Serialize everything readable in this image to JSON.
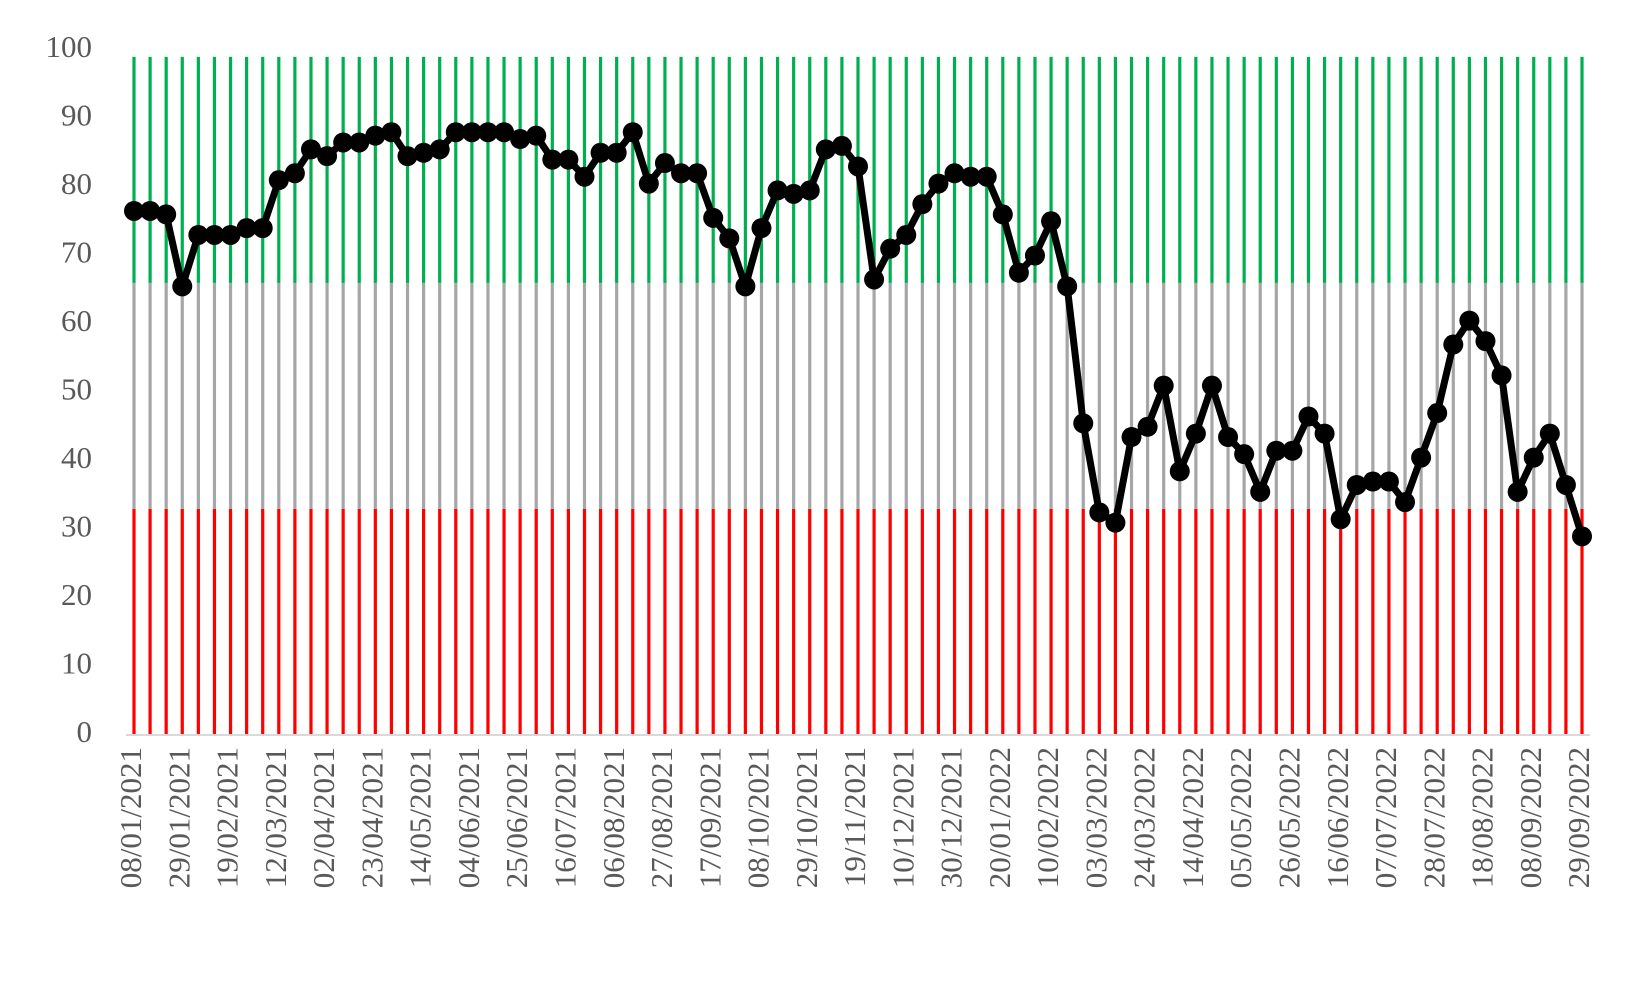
{
  "chart_data": {
    "type": "line",
    "categories": [
      "08/01/2021",
      null,
      null,
      "29/01/2021",
      null,
      null,
      "19/02/2021",
      null,
      null,
      "12/03/2021",
      null,
      null,
      "02/04/2021",
      null,
      null,
      "23/04/2021",
      null,
      null,
      "14/05/2021",
      null,
      null,
      "04/06/2021",
      null,
      null,
      "25/06/2021",
      null,
      null,
      "16/07/2021",
      null,
      null,
      "06/08/2021",
      null,
      null,
      "27/08/2021",
      null,
      null,
      "17/09/2021",
      null,
      null,
      "08/10/2021",
      null,
      null,
      "29/10/2021",
      null,
      null,
      "19/11/2021",
      null,
      null,
      "10/12/2021",
      null,
      null,
      "30/12/2021",
      null,
      null,
      "20/01/2022",
      null,
      null,
      "10/02/2022",
      null,
      null,
      "03/03/2022",
      null,
      null,
      "24/03/2022",
      null,
      null,
      "14/04/2022",
      null,
      null,
      "05/05/2022",
      null,
      null,
      "26/05/2022",
      null,
      null,
      "16/06/2022",
      null,
      null,
      "07/07/2022",
      null,
      null,
      "28/07/2022",
      null,
      null,
      "18/08/2022",
      null,
      null,
      "08/09/2022",
      null,
      null,
      "29/09/2022"
    ],
    "bands": [
      {
        "color": "#ff0000",
        "values": [
          33,
          33,
          33,
          33,
          33,
          33,
          33,
          33,
          33,
          33,
          33,
          33,
          33,
          33,
          33,
          33,
          33,
          33,
          33,
          33,
          33,
          33,
          33,
          33,
          33,
          33,
          33,
          33,
          33,
          33,
          33,
          33,
          33,
          33,
          33,
          33,
          33,
          33,
          33,
          33,
          33,
          33,
          33,
          33,
          33,
          33,
          33,
          33,
          33,
          33,
          33,
          33,
          33,
          33,
          33,
          33,
          33,
          33,
          33,
          33,
          33,
          33,
          33,
          33,
          33,
          33,
          33,
          33,
          33,
          33,
          33,
          33,
          33,
          33,
          33,
          33,
          33,
          33,
          33,
          33,
          33,
          33,
          33,
          33,
          33,
          33,
          33,
          33,
          33,
          33,
          33
        ]
      },
      {
        "color": "#a6a6a6",
        "values": [
          33,
          33,
          33,
          33,
          33,
          33,
          33,
          33,
          33,
          33,
          33,
          33,
          33,
          33,
          33,
          33,
          33,
          33,
          33,
          33,
          33,
          33,
          33,
          33,
          33,
          33,
          33,
          33,
          33,
          33,
          33,
          33,
          33,
          33,
          33,
          33,
          33,
          33,
          33,
          33,
          33,
          33,
          33,
          33,
          33,
          33,
          33,
          33,
          33,
          33,
          33,
          33,
          33,
          33,
          33,
          33,
          33,
          33,
          33,
          33,
          33,
          33,
          33,
          33,
          33,
          33,
          33,
          33,
          33,
          33,
          33,
          33,
          33,
          33,
          33,
          33,
          33,
          33,
          33,
          33,
          33,
          33,
          33,
          33,
          33,
          33,
          33,
          33,
          33,
          33,
          33
        ]
      },
      {
        "color": "#00b050",
        "values": [
          33,
          33,
          33,
          33,
          33,
          33,
          33,
          33,
          33,
          33,
          33,
          33,
          33,
          33,
          33,
          33,
          33,
          33,
          33,
          33,
          33,
          33,
          33,
          33,
          33,
          33,
          33,
          33,
          33,
          33,
          33,
          33,
          33,
          33,
          33,
          33,
          33,
          33,
          33,
          33,
          33,
          33,
          33,
          33,
          33,
          33,
          33,
          33,
          33,
          33,
          33,
          33,
          33,
          33,
          33,
          33,
          33,
          33,
          33,
          33,
          33,
          33,
          33,
          33,
          33,
          33,
          33,
          33,
          33,
          33,
          33,
          33,
          33,
          33,
          33,
          33,
          33,
          33,
          33,
          33,
          33,
          33,
          33,
          33,
          33,
          33,
          33,
          33,
          33,
          33,
          33
        ]
      }
    ],
    "series": [
      {
        "color": "#000000",
        "values": [
          76.5,
          76.5,
          76,
          65.5,
          73,
          73,
          73,
          74,
          74,
          81,
          82,
          85.5,
          84.5,
          86.5,
          86.5,
          87.5,
          88,
          84.5,
          85,
          85.5,
          88,
          88,
          88,
          88,
          87,
          87.5,
          84,
          84,
          81.5,
          85,
          85,
          88,
          80.5,
          83.5,
          82,
          82,
          75.5,
          72.5,
          65.5,
          74,
          79.5,
          79,
          79.5,
          85.5,
          86,
          83,
          66.5,
          71,
          73,
          77.5,
          80.5,
          82,
          81.5,
          81.5,
          76,
          67.5,
          70,
          75,
          65.5,
          45.5,
          32.5,
          31,
          43.5,
          45,
          51,
          38.5,
          44,
          51,
          43.5,
          41,
          35.5,
          41.5,
          41.5,
          46.5,
          44,
          31.5,
          36.5,
          37,
          37,
          34,
          40.5,
          47,
          57,
          60.5,
          57.5,
          52.5,
          35.5,
          40.5,
          44,
          36.5,
          29
        ]
      }
    ],
    "ylim": [
      0,
      100
    ],
    "yticks": [
      0,
      10,
      20,
      30,
      40,
      50,
      60,
      70,
      80,
      90,
      100
    ]
  }
}
